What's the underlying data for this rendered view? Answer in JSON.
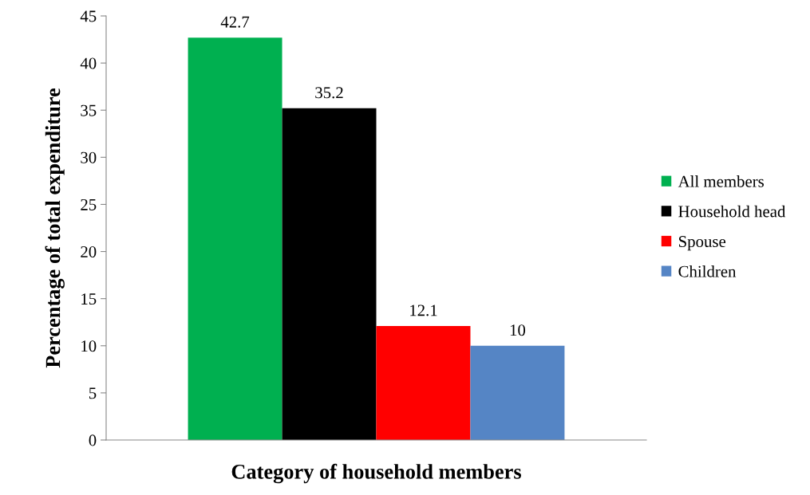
{
  "chart_data": {
    "type": "bar",
    "xlabel": "Category of household members",
    "ylabel": "Percentage of total expenditure",
    "categories": [
      null
    ],
    "series": [
      {
        "name": "All members",
        "color": "#00b050",
        "values": [
          42.7
        ]
      },
      {
        "name": "Household head",
        "color": "#000000",
        "values": [
          35.2
        ]
      },
      {
        "name": "Spouse",
        "color": "#ff0000",
        "values": [
          12.1
        ]
      },
      {
        "name": "Children",
        "color": "#5585c5",
        "values": [
          10
        ]
      }
    ],
    "ylim": [
      0,
      45
    ],
    "yticks": [
      0,
      5,
      10,
      15,
      20,
      25,
      30,
      35,
      40,
      45
    ],
    "data_labels": true,
    "legend": "right",
    "grid": false
  }
}
